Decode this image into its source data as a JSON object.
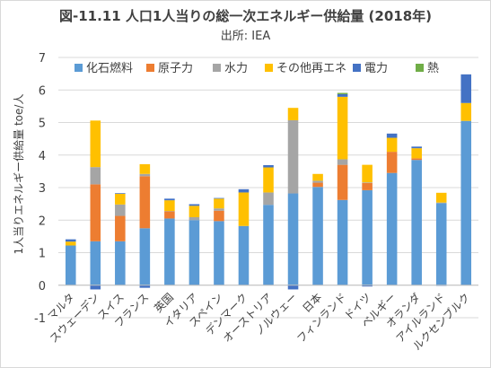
{
  "header": {
    "title": "図-11.11 人口1人当りの総一次エネルギー供給量 (2018年)",
    "source": "出所: IEA"
  },
  "chart_data": {
    "type": "bar",
    "stacked": true,
    "title": "図-11.11 人口1人当りの総一次エネルギー供給量 (2018年)",
    "subtitle": "出所: IEA",
    "xlabel": "",
    "ylabel": "1人当りエネルギー供給量 toe/人",
    "ylim": [
      -1,
      7
    ],
    "yticks": [
      -1,
      0,
      1,
      2,
      3,
      4,
      5,
      6,
      7
    ],
    "legend_position": "top",
    "categories": [
      "マルタ",
      "スウェーデン",
      "スイス",
      "フランス",
      "英国",
      "イタリア",
      "スペイン",
      "デンマーク",
      "オーストリア",
      "ノルウェー",
      "日本",
      "フィンランド",
      "ドイツ",
      "ベルギー",
      "オランダ",
      "アイルランド",
      "ルクセンブルク"
    ],
    "series": [
      {
        "name": "化石燃料",
        "color": "#5b9bd5",
        "values": [
          1.22,
          1.35,
          1.35,
          1.75,
          2.05,
          2.0,
          1.97,
          1.82,
          2.47,
          2.82,
          3.02,
          2.62,
          2.92,
          3.45,
          3.85,
          2.52,
          5.05
        ]
      },
      {
        "name": "原子力",
        "color": "#ed7d31",
        "values": [
          0,
          1.75,
          0.78,
          1.6,
          0.22,
          0,
          0.32,
          0,
          0,
          0,
          0.13,
          1.08,
          0.22,
          0.65,
          0.05,
          0,
          0
        ]
      },
      {
        "name": "水力",
        "color": "#a5a5a5",
        "values": [
          0,
          0.53,
          0.35,
          0.07,
          0.01,
          0.09,
          0.07,
          0,
          0.38,
          2.25,
          0.06,
          0.17,
          0.02,
          0,
          0,
          0.02,
          0
        ]
      },
      {
        "name": "その他再エネ",
        "color": "#ffc000",
        "values": [
          0.12,
          1.43,
          0.33,
          0.3,
          0.33,
          0.35,
          0.3,
          1.03,
          0.77,
          0.38,
          0.21,
          1.92,
          0.54,
          0.43,
          0.31,
          0.3,
          0.55
        ]
      },
      {
        "name": "電力",
        "color": "#4472c4",
        "values": [
          0.07,
          -0.13,
          0.02,
          -0.08,
          0.05,
          0.05,
          0.02,
          0.1,
          0.07,
          -0.13,
          0,
          0.08,
          -0.04,
          0.13,
          0.05,
          -0.02,
          0.88
        ]
      },
      {
        "name": "熱",
        "color": "#70ad47",
        "values": [
          0,
          0,
          0,
          0,
          0,
          0,
          0,
          0,
          0,
          0,
          0,
          0.04,
          0,
          0,
          0,
          0,
          0
        ]
      }
    ]
  }
}
